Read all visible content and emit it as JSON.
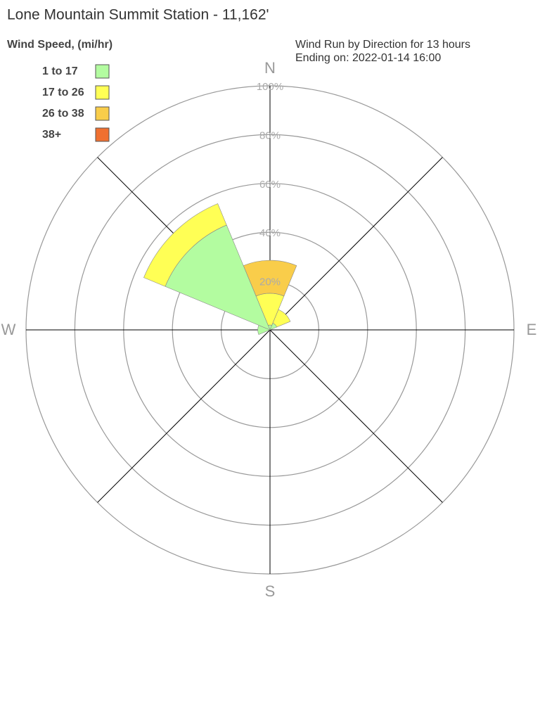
{
  "chart_data": {
    "type": "windrose",
    "title": "Lone Mountain Summit Station - 11,162'",
    "legend_title": "Wind Speed, (mi/hr)",
    "subtitle": [
      "Wind Run by Direction for 13 hours",
      "Ending on: 2022-01-14 16:00"
    ],
    "categories": [
      "N",
      null,
      "E",
      null,
      "S",
      null,
      "W",
      null
    ],
    "series": [
      {
        "name": "1 to 17",
        "color": "#b3fca0",
        "values": [
          2,
          3,
          0,
          0,
          0,
          0,
          5,
          46.5
        ]
      },
      {
        "name": "17 to 26",
        "color": "#ffff55",
        "values": [
          13,
          6,
          0,
          0,
          0,
          0,
          0,
          9.5
        ]
      },
      {
        "name": "26 to 38",
        "color": "#f9cd4a",
        "values": [
          13.5,
          0,
          0,
          0,
          0,
          0,
          0,
          0
        ]
      },
      {
        "name": "38+",
        "color": "#f07030",
        "values": [
          0,
          0,
          0,
          0,
          0,
          0,
          0,
          0
        ]
      }
    ],
    "rlim": [
      0,
      100
    ],
    "rticks": [
      {
        "value": 20,
        "label": "20%"
      },
      {
        "value": 40,
        "label": "40%"
      },
      {
        "value": 60,
        "label": "60%"
      },
      {
        "value": 80,
        "label": "80%"
      },
      {
        "value": 100,
        "label": "100%"
      }
    ],
    "legend_position": "upper left"
  }
}
